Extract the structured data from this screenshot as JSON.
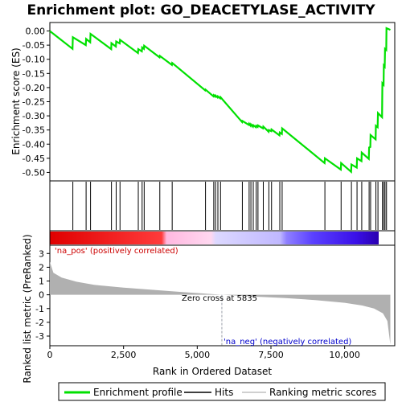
{
  "chart_data": {
    "type": "line",
    "title": "Enrichment plot: GO_DEACETYLASE_ACTIVITY",
    "xlabel": "Rank in Ordered Dataset",
    "ylabel_top": "Enrichment score (ES)",
    "ylabel_bottom": "Ranked list metric (PreRanked)",
    "x_ticks": [
      0,
      2500,
      5000,
      7500,
      10000
    ],
    "x_tick_labels": [
      "0",
      "2,500",
      "5,000",
      "7,500",
      "10,000"
    ],
    "xlim": [
      0,
      11700
    ],
    "es_ylim": [
      -0.53,
      0.03
    ],
    "es_yticks": [
      0.0,
      -0.05,
      -0.1,
      -0.15,
      -0.2,
      -0.25,
      -0.3,
      -0.35,
      -0.4,
      -0.45,
      -0.5
    ],
    "es_ytick_labels": [
      "0.00",
      "-0.05",
      "-0.10",
      "-0.15",
      "-0.20",
      "-0.25",
      "-0.30",
      "-0.35",
      "-0.40",
      "-0.45",
      "-0.50"
    ],
    "metric_ylim": [
      -3.7,
      3.6
    ],
    "metric_yticks": [
      3,
      2,
      1,
      0,
      -1,
      -2,
      -3
    ],
    "metric_ytick_labels": [
      "3",
      "2",
      "1",
      "0",
      "-1",
      "-2",
      "-3"
    ],
    "zero_cross_rank": 5835,
    "zero_cross_label": "Zero cross at 5835",
    "pos_label": "'na_pos' (positively correlated)",
    "neg_label": "'na_neg' (negatively correlated)",
    "colors": {
      "es_line": "#00e000",
      "pos_text": "#cc0000",
      "neg_text": "#0000cc",
      "metric_fill": "#b0b0b0",
      "zero_line": "#9aa0aa"
    },
    "hits": [
      780,
      1230,
      1380,
      2090,
      2250,
      2380,
      3000,
      3130,
      3200,
      3730,
      4150,
      5280,
      5560,
      5620,
      5700,
      5790,
      6530,
      6760,
      6820,
      6900,
      7000,
      7060,
      7240,
      7430,
      7520,
      7800,
      7880,
      9330,
      9880,
      10230,
      10420,
      10580,
      10830,
      10880,
      11060,
      11130,
      11280,
      11330,
      11370,
      11420
    ],
    "es_profile": [
      [
        0,
        0.0
      ],
      [
        770,
        -0.063
      ],
      [
        780,
        -0.022
      ],
      [
        1220,
        -0.05
      ],
      [
        1230,
        -0.028
      ],
      [
        1370,
        -0.04
      ],
      [
        1380,
        -0.01
      ],
      [
        2080,
        -0.064
      ],
      [
        2090,
        -0.043
      ],
      [
        2240,
        -0.055
      ],
      [
        2250,
        -0.037
      ],
      [
        2370,
        -0.044
      ],
      [
        2380,
        -0.031
      ],
      [
        2990,
        -0.078
      ],
      [
        3000,
        -0.064
      ],
      [
        3120,
        -0.072
      ],
      [
        3130,
        -0.058
      ],
      [
        3190,
        -0.063
      ],
      [
        3200,
        -0.052
      ],
      [
        3720,
        -0.093
      ],
      [
        3730,
        -0.088
      ],
      [
        4140,
        -0.12
      ],
      [
        4150,
        -0.113
      ],
      [
        5270,
        -0.21
      ],
      [
        5280,
        -0.207
      ],
      [
        5550,
        -0.231
      ],
      [
        5560,
        -0.227
      ],
      [
        5610,
        -0.232
      ],
      [
        5620,
        -0.228
      ],
      [
        5690,
        -0.235
      ],
      [
        5700,
        -0.231
      ],
      [
        5780,
        -0.238
      ],
      [
        5790,
        -0.234
      ],
      [
        6520,
        -0.322
      ],
      [
        6530,
        -0.318
      ],
      [
        6750,
        -0.332
      ],
      [
        6760,
        -0.328
      ],
      [
        6810,
        -0.335
      ],
      [
        6820,
        -0.33
      ],
      [
        6890,
        -0.338
      ],
      [
        6900,
        -0.333
      ],
      [
        6990,
        -0.34
      ],
      [
        7000,
        -0.335
      ],
      [
        7050,
        -0.339
      ],
      [
        7060,
        -0.334
      ],
      [
        7230,
        -0.344
      ],
      [
        7240,
        -0.338
      ],
      [
        7420,
        -0.356
      ],
      [
        7430,
        -0.35
      ],
      [
        7510,
        -0.354
      ],
      [
        7520,
        -0.348
      ],
      [
        7790,
        -0.369
      ],
      [
        7800,
        -0.359
      ],
      [
        7870,
        -0.364
      ],
      [
        7880,
        -0.344
      ],
      [
        9320,
        -0.467
      ],
      [
        9330,
        -0.45
      ],
      [
        9870,
        -0.49
      ],
      [
        9880,
        -0.467
      ],
      [
        10220,
        -0.498
      ],
      [
        10230,
        -0.472
      ],
      [
        10410,
        -0.483
      ],
      [
        10420,
        -0.45
      ],
      [
        10570,
        -0.46
      ],
      [
        10580,
        -0.43
      ],
      [
        10820,
        -0.452
      ],
      [
        10830,
        -0.412
      ],
      [
        10870,
        -0.41
      ],
      [
        10880,
        -0.368
      ],
      [
        11050,
        -0.383
      ],
      [
        11060,
        -0.335
      ],
      [
        11120,
        -0.34
      ],
      [
        11130,
        -0.29
      ],
      [
        11270,
        -0.305
      ],
      [
        11280,
        -0.185
      ],
      [
        11320,
        -0.19
      ],
      [
        11330,
        -0.122
      ],
      [
        11360,
        -0.126
      ],
      [
        11370,
        -0.063
      ],
      [
        11410,
        -0.067
      ],
      [
        11420,
        0.01
      ],
      [
        11550,
        0.004
      ]
    ],
    "metric_curve": [
      [
        0,
        2.4
      ],
      [
        120,
        1.6
      ],
      [
        400,
        1.25
      ],
      [
        900,
        0.95
      ],
      [
        1500,
        0.72
      ],
      [
        2500,
        0.52
      ],
      [
        3500,
        0.36
      ],
      [
        4500,
        0.2
      ],
      [
        5835,
        0.0
      ],
      [
        7000,
        -0.14
      ],
      [
        8000,
        -0.24
      ],
      [
        9000,
        -0.38
      ],
      [
        10000,
        -0.58
      ],
      [
        10600,
        -0.78
      ],
      [
        11000,
        -1.0
      ],
      [
        11300,
        -1.35
      ],
      [
        11450,
        -1.9
      ],
      [
        11550,
        -3.6
      ]
    ]
  },
  "legend": {
    "items": [
      {
        "label": "Enrichment profile",
        "color": "#00e000"
      },
      {
        "label": "Hits",
        "color": "#000000"
      },
      {
        "label": "Ranking metric scores",
        "color": "#c0c0c0"
      }
    ]
  }
}
